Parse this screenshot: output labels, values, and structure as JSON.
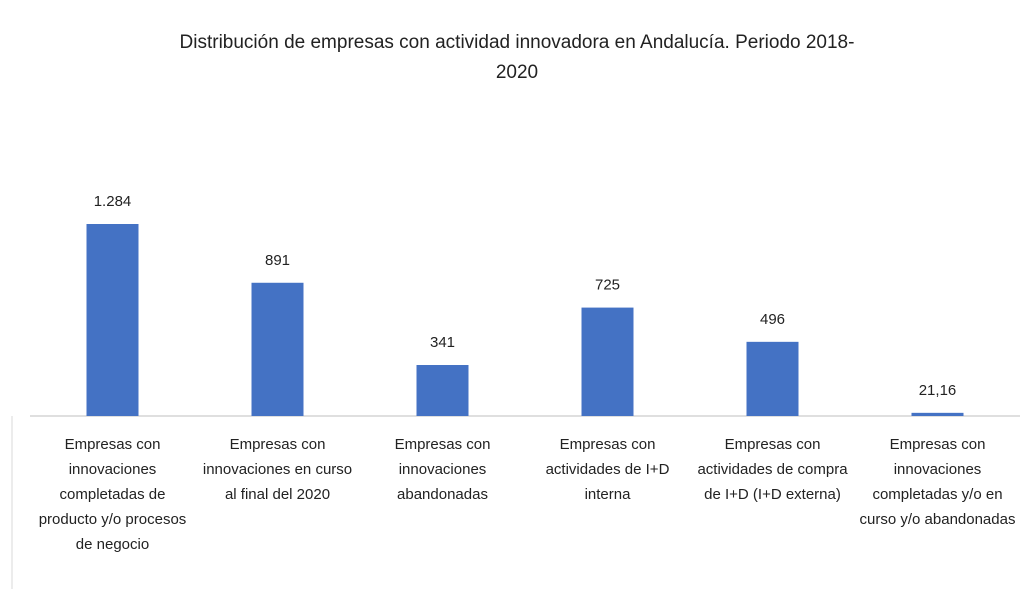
{
  "chart_data": {
    "type": "bar",
    "title": "Distribución de empresas con actividad innovadora en Andalucía. Periodo 2018-2020",
    "categories": [
      "Empresas con innovaciones completadas de producto y/o procesos de negocio",
      "Empresas con innovaciones en curso al final del 2020",
      "Empresas con innovaciones abandonadas",
      "Empresas con actividades de I+D interna",
      "Empresas con actividades de compra de I+D (I+D externa)",
      "Empresas con innovaciones completadas y/o en curso y/o abandonadas"
    ],
    "values": [
      1284,
      891,
      341,
      725,
      496,
      21.16
    ],
    "value_labels": [
      "1.284",
      "891",
      "341",
      "725",
      "496",
      "21,16"
    ],
    "color": "#4472c4"
  }
}
